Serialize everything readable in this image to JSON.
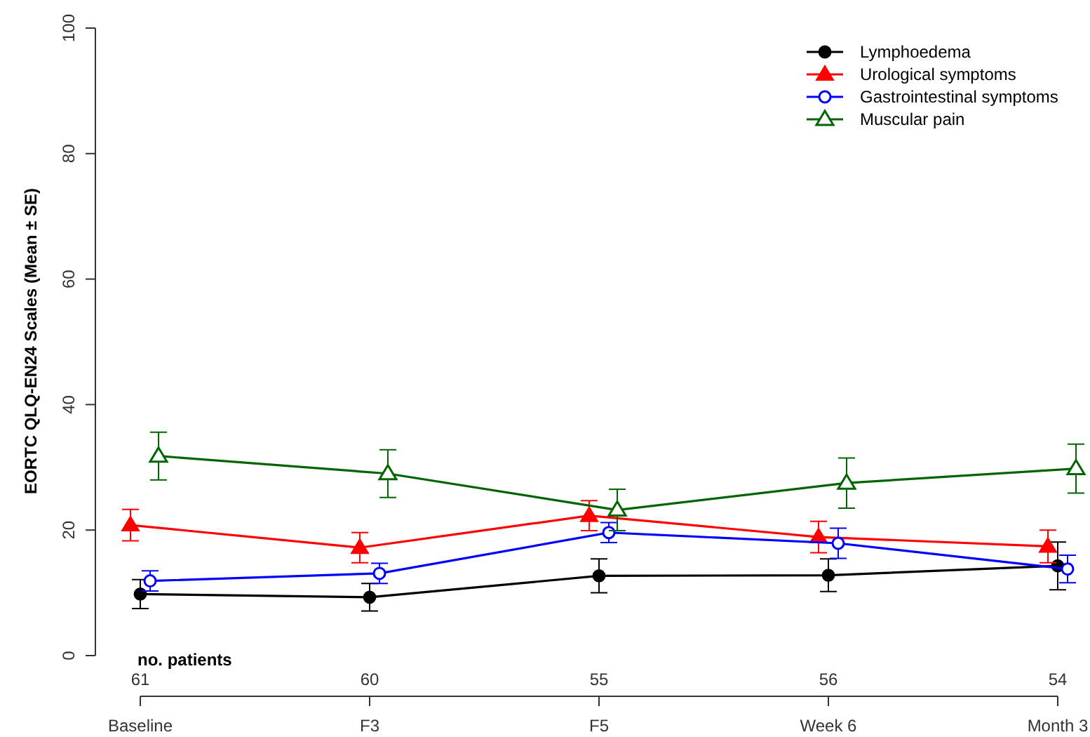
{
  "chart_data": {
    "type": "line",
    "ylabel": "EORTC QLQ-EN24 Scales (Mean ± SE)",
    "categories": [
      "Baseline",
      "F3",
      "F5",
      "Week 6",
      "Month 3"
    ],
    "ylim": [
      0,
      100
    ],
    "yticks": [
      0,
      20,
      40,
      60,
      80,
      100
    ],
    "grid": false,
    "legend": "top right",
    "series": [
      {
        "name": "Lymphoedema",
        "color": "#000000",
        "marker": "circle",
        "values": [
          9.8,
          9.3,
          12.7,
          12.8,
          14.3
        ],
        "errors": [
          2.3,
          2.2,
          2.7,
          2.6,
          3.8
        ]
      },
      {
        "name": "Urological symptoms",
        "color": "#ff0000",
        "marker": "triangle",
        "values": [
          20.8,
          17.2,
          22.3,
          18.9,
          17.4
        ],
        "errors": [
          2.5,
          2.4,
          2.4,
          2.5,
          2.6
        ]
      },
      {
        "name": "Gastrointestinal symptoms",
        "color": "#0000ff",
        "marker": "circle",
        "values": [
          11.9,
          13.1,
          19.6,
          17.9,
          13.8
        ],
        "errors": [
          1.6,
          1.6,
          1.6,
          2.4,
          2.2
        ]
      },
      {
        "name": "Muscular pain",
        "color": "#006400",
        "marker": "triangle",
        "values": [
          31.8,
          29.0,
          23.2,
          27.5,
          29.8
        ],
        "errors": [
          3.8,
          3.8,
          3.3,
          4.0,
          3.9
        ]
      }
    ],
    "annotations": [
      "no. patients",
      "61",
      "60",
      "55",
      "56",
      "54"
    ]
  }
}
